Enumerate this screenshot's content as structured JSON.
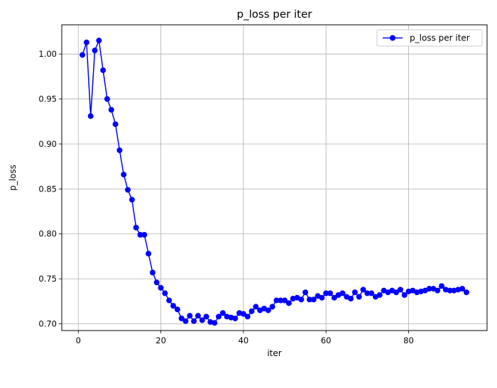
{
  "chart_data": {
    "type": "line",
    "title": "p_loss per iter",
    "xlabel": "iter",
    "ylabel": "p_loss",
    "xlim": [
      -4,
      99
    ],
    "ylim": [
      0.6925,
      1.0325
    ],
    "xticks": [
      0,
      20,
      40,
      60,
      80
    ],
    "xtick_labels": [
      "0",
      "20",
      "40",
      "60",
      "80"
    ],
    "yticks": [
      0.7,
      0.75,
      0.8,
      0.85,
      0.9,
      0.95,
      1.0
    ],
    "ytick_labels": [
      "0.70",
      "0.75",
      "0.80",
      "0.85",
      "0.90",
      "0.95",
      "1.00"
    ],
    "grid": true,
    "legend_position": "top-right",
    "colors": {
      "series": "#0000ff",
      "grid": "#b0b0b0",
      "axes": "#000000"
    },
    "series": [
      {
        "name": "p_loss per iter",
        "marker": "circle",
        "x": [
          1,
          2,
          3,
          4,
          5,
          6,
          7,
          8,
          9,
          10,
          11,
          12,
          13,
          14,
          15,
          16,
          17,
          18,
          19,
          20,
          21,
          22,
          23,
          24,
          25,
          26,
          27,
          28,
          29,
          30,
          31,
          32,
          33,
          34,
          35,
          36,
          37,
          38,
          39,
          40,
          41,
          42,
          43,
          44,
          45,
          46,
          47,
          48,
          49,
          50,
          51,
          52,
          53,
          54,
          55,
          56,
          57,
          58,
          59,
          60,
          61,
          62,
          63,
          64,
          65,
          66,
          67,
          68,
          69,
          70,
          71,
          72,
          73,
          74,
          75,
          76,
          77,
          78,
          79,
          80,
          81,
          82,
          83,
          84,
          85,
          86,
          87,
          88,
          89,
          90,
          91,
          92,
          93,
          94
        ],
        "y": [
          0.999,
          1.013,
          0.931,
          1.004,
          1.015,
          0.982,
          0.95,
          0.938,
          0.922,
          0.893,
          0.866,
          0.849,
          0.838,
          0.807,
          0.799,
          0.799,
          0.778,
          0.757,
          0.746,
          0.74,
          0.734,
          0.726,
          0.72,
          0.716,
          0.706,
          0.703,
          0.709,
          0.703,
          0.709,
          0.704,
          0.708,
          0.702,
          0.701,
          0.708,
          0.712,
          0.708,
          0.707,
          0.706,
          0.712,
          0.711,
          0.708,
          0.714,
          0.719,
          0.715,
          0.717,
          0.715,
          0.719,
          0.726,
          0.726,
          0.726,
          0.723,
          0.728,
          0.729,
          0.727,
          0.735,
          0.727,
          0.727,
          0.731,
          0.729,
          0.734,
          0.734,
          0.729,
          0.732,
          0.734,
          0.73,
          0.728,
          0.735,
          0.73,
          0.738,
          0.734,
          0.734,
          0.73,
          0.732,
          0.737,
          0.735,
          0.737,
          0.735,
          0.738,
          0.732,
          0.736,
          0.737,
          0.735,
          0.736,
          0.737,
          0.739,
          0.739,
          0.737,
          0.742,
          0.738,
          0.737,
          0.737,
          0.738,
          0.739,
          0.735
        ]
      }
    ]
  }
}
